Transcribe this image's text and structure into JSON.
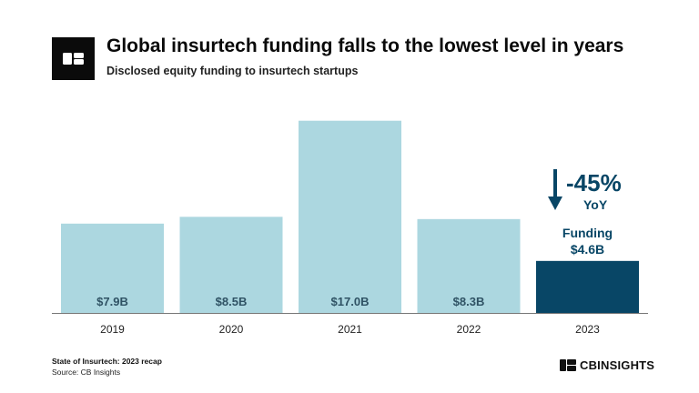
{
  "header": {
    "title": "Global insurtech funding falls to the lowest level in years",
    "subtitle": "Disclosed equity funding to insurtech startups"
  },
  "footer": {
    "report": "State of Insurtech: 2023 recap",
    "source": "Source: CB Insights",
    "brand": "CBINSIGHTS"
  },
  "colors": {
    "bar": "#acd7e0",
    "highlight": "#084666",
    "label": "#2f5264",
    "axis": "#777777"
  },
  "chart_data": {
    "type": "bar",
    "title": "Global insurtech funding falls to the lowest level in years",
    "subtitle": "Disclosed equity funding to insurtech startups",
    "categories": [
      "2019",
      "2020",
      "2021",
      "2022",
      "2023"
    ],
    "values": [
      7.9,
      8.5,
      17.0,
      8.3,
      4.6
    ],
    "value_labels": [
      "$7.9B",
      "$8.5B",
      "$17.0B",
      "$8.3B",
      "$4.6B"
    ],
    "unit": "$B",
    "ylim": [
      0,
      17.7
    ],
    "xlabel": "",
    "ylabel": "",
    "grid": false,
    "highlight_index": 4,
    "annotation": {
      "change": "-45%",
      "change_period": "YoY",
      "funding_label": "Funding",
      "funding_value": "$4.6B"
    }
  }
}
